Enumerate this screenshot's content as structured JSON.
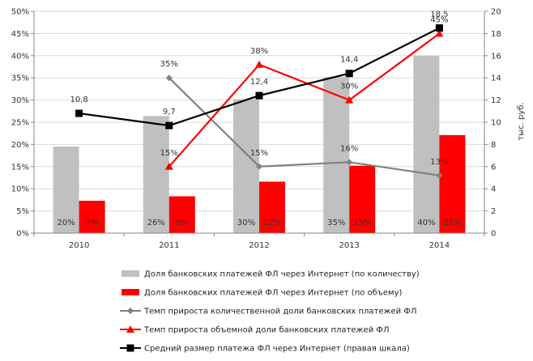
{
  "chart_data": {
    "type": "bar",
    "categories": [
      "2010",
      "2011",
      "2012",
      "2013",
      "2014"
    ],
    "ylim_left": [
      0,
      0.5
    ],
    "ylim_right": [
      0,
      20
    ],
    "left_ticks": [
      "0%",
      "5%",
      "10%",
      "15%",
      "20%",
      "25%",
      "30%",
      "35%",
      "40%",
      "45%",
      "50%"
    ],
    "right_ticks": [
      "0",
      "2",
      "4",
      "6",
      "8",
      "10",
      "12",
      "14",
      "16",
      "18",
      "20"
    ],
    "right_axis_label": "тыс. руб.",
    "grid": true,
    "legend_position": "bottom",
    "series": [
      {
        "name": "Доля банковских платежей ФЛ через Интернет (по количеству)",
        "kind": "bar",
        "axis": "left",
        "color": "#c0c0c0",
        "values": [
          0.195,
          0.264,
          0.302,
          0.352,
          0.4
        ],
        "labels": [
          "20%",
          "26%",
          "30%",
          "35%",
          "40%"
        ]
      },
      {
        "name": "Доля банковских платежей ФЛ через Интернет (по объему)",
        "kind": "bar",
        "axis": "left",
        "color": "#ff0000",
        "values": [
          0.073,
          0.083,
          0.116,
          0.152,
          0.221
        ],
        "labels": [
          "7%",
          "8%",
          "12%",
          "15%",
          "22%"
        ]
      },
      {
        "name": "Темп прироста количественной доли банковских платежей ФЛ",
        "kind": "line",
        "axis": "left",
        "color": "#808080",
        "marker": "diamond",
        "values": [
          null,
          0.35,
          0.15,
          0.16,
          0.13
        ],
        "labels": [
          null,
          "35%",
          "15%",
          "16%",
          "13%"
        ]
      },
      {
        "name": "Темп прироста объемной доли банковских платежей ФЛ",
        "kind": "line",
        "axis": "left",
        "color": "#ff0000",
        "marker": "triangle",
        "values": [
          null,
          0.15,
          0.38,
          0.3,
          0.45
        ],
        "labels": [
          null,
          "15%",
          "38%",
          "30%",
          "45%"
        ]
      },
      {
        "name": "Средний размер платежа ФЛ через Интернет (правая шкала)",
        "kind": "line",
        "axis": "right",
        "color": "#000000",
        "marker": "square",
        "values": [
          10.8,
          9.7,
          12.4,
          14.4,
          18.5
        ],
        "labels": [
          "10,8",
          "9,7",
          "12,4",
          "14,4",
          "18,5"
        ]
      }
    ]
  }
}
